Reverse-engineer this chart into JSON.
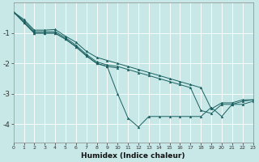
{
  "xlabel": "Humidex (Indice chaleur)",
  "ylabel": "",
  "bg_color": "#c8e8e8",
  "grid_color": "#e8f8f8",
  "line_color": "#1a6060",
  "series": [
    {
      "x": [
        0,
        1,
        2,
        3,
        4,
        5,
        6,
        7,
        8,
        9,
        10,
        11,
        12,
        13,
        14,
        15,
        16,
        17,
        18,
        19,
        20,
        21,
        22,
        23
      ],
      "y": [
        -0.3,
        -0.55,
        -0.9,
        -0.9,
        -0.88,
        -1.1,
        -1.3,
        -1.6,
        -1.8,
        -1.9,
        -2.0,
        -2.1,
        -2.2,
        -2.3,
        -2.4,
        -2.5,
        -2.6,
        -2.7,
        -2.8,
        -3.5,
        -3.3,
        -3.3,
        -3.2,
        -3.2
      ]
    },
    {
      "x": [
        0,
        1,
        2,
        3,
        4,
        5,
        6,
        7,
        8,
        9,
        10,
        11,
        12,
        13,
        14,
        15,
        16,
        17,
        18,
        19,
        20,
        21,
        22,
        23
      ],
      "y": [
        -0.3,
        -0.6,
        -0.95,
        -0.95,
        -0.95,
        -1.15,
        -1.4,
        -1.7,
        -1.95,
        -2.05,
        -2.1,
        -2.2,
        -2.3,
        -2.4,
        -2.5,
        -2.6,
        -2.7,
        -2.8,
        -3.55,
        -3.65,
        -3.35,
        -3.35,
        -3.25,
        -3.2
      ]
    },
    {
      "x": [
        0,
        1,
        2,
        3,
        4,
        5,
        6,
        7,
        8,
        9,
        10
      ],
      "y": [
        -0.3,
        -0.65,
        -1.0,
        -1.0,
        -1.0,
        -1.2,
        -1.45,
        -1.75,
        -2.0,
        -2.1,
        -2.15
      ]
    },
    {
      "x": [
        0,
        1,
        2,
        3,
        4,
        5,
        6,
        7,
        8,
        9,
        10,
        11,
        12,
        13,
        14,
        15,
        16,
        17,
        18,
        19,
        20,
        21,
        22,
        23
      ],
      "y": [
        -0.3,
        -0.65,
        -1.0,
        -1.0,
        -1.0,
        -1.2,
        -1.45,
        -1.75,
        -2.0,
        -2.1,
        -3.0,
        -3.8,
        -4.1,
        -3.75,
        -3.75,
        -3.75,
        -3.75,
        -3.75,
        -3.75,
        -3.45,
        -3.75,
        -3.35,
        -3.35,
        -3.25
      ]
    }
  ],
  "xlim": [
    0,
    23
  ],
  "ylim": [
    -4.6,
    0.0
  ],
  "yticks": [
    -4,
    -3,
    -2,
    -1
  ],
  "xticks": [
    0,
    1,
    2,
    3,
    4,
    5,
    6,
    7,
    8,
    9,
    10,
    11,
    12,
    13,
    14,
    15,
    16,
    17,
    18,
    19,
    20,
    21,
    22,
    23
  ]
}
